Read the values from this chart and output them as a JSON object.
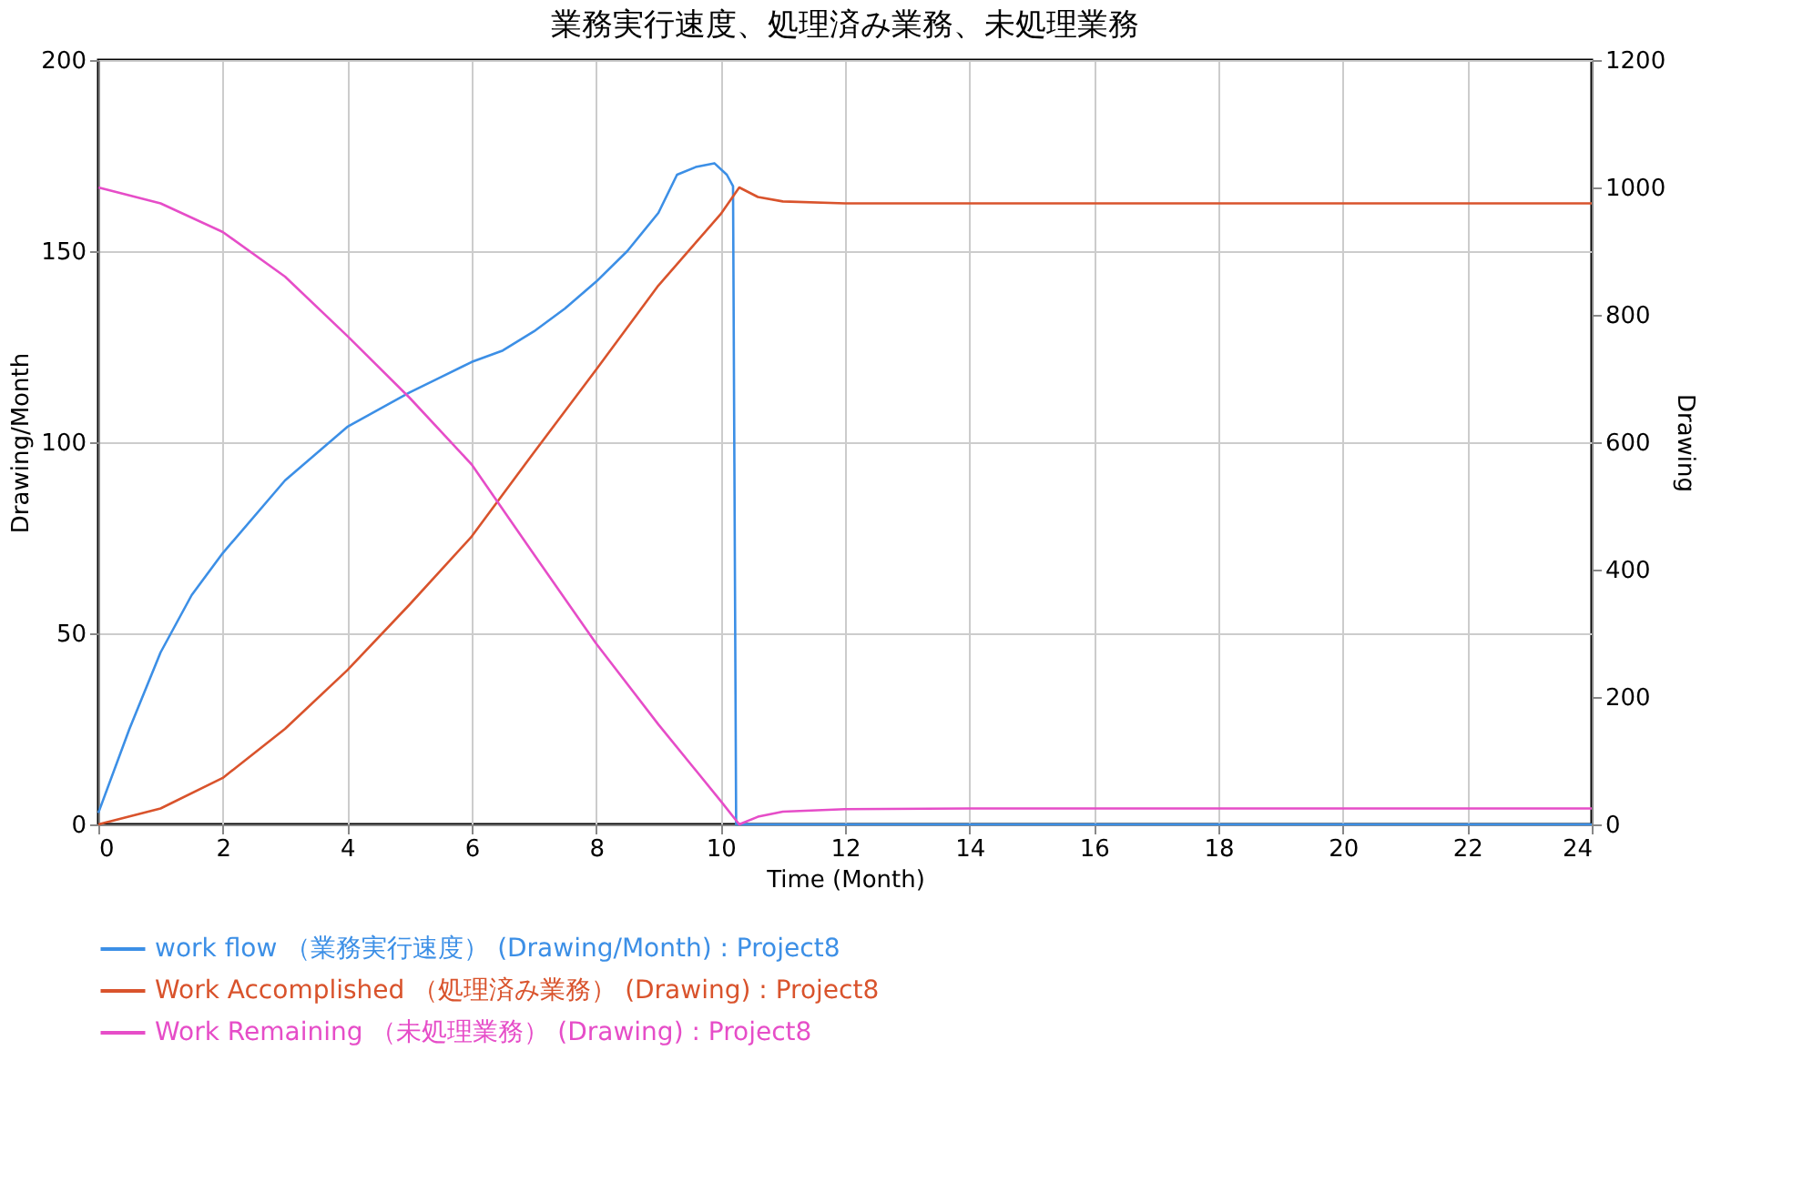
{
  "chart_data": {
    "type": "line",
    "title": "業務実行速度、処理済み業務、未処理業務",
    "xlabel": "Time (Month)",
    "ylabel": "Drawing/Month",
    "y2label": "Drawing",
    "xlim": [
      0,
      24
    ],
    "xticks": [
      0,
      2,
      4,
      6,
      8,
      10,
      12,
      14,
      16,
      18,
      20,
      22,
      24
    ],
    "ylim": [
      0,
      200
    ],
    "yticks": [
      0,
      50,
      100,
      150,
      200
    ],
    "y2lim": [
      0,
      1200
    ],
    "y2ticks": [
      0,
      200,
      400,
      600,
      800,
      1000,
      1200
    ],
    "grid": true,
    "legend": "bottom",
    "line_style": "solid",
    "series": [
      {
        "name": "work flow （業務実行速度） (Drawing/Month) : Project8",
        "color": "#3c8fe6",
        "axis": "y",
        "x": [
          0,
          0.5,
          1,
          1.5,
          2,
          3,
          4,
          5,
          5.5,
          6,
          6.5,
          7,
          7.5,
          8,
          8.5,
          9,
          9.3,
          9.6,
          9.9,
          10.1,
          10.2,
          10.25,
          10.5,
          12,
          14,
          16,
          18,
          20,
          22,
          24
        ],
        "values": [
          3,
          25,
          45,
          60,
          71,
          90,
          104,
          113,
          117,
          121,
          124,
          129,
          135,
          142,
          150,
          160,
          170,
          172,
          173,
          170,
          167,
          0,
          0,
          0,
          0,
          0,
          0,
          0,
          0,
          0
        ]
      },
      {
        "name": "Work Accomplished （処理済み業務） (Drawing) : Project8",
        "color": "#d9532c",
        "axis": "y2",
        "x": [
          0,
          1,
          2,
          3,
          4,
          5,
          6,
          7,
          8,
          9,
          10,
          10.3,
          10.6,
          11,
          12,
          14,
          16,
          18,
          20,
          22,
          24
        ],
        "values": [
          0,
          25,
          73,
          150,
          242,
          345,
          452,
          584,
          714,
          846,
          958,
          1000,
          985,
          978,
          975,
          975,
          975,
          975,
          975,
          975,
          975
        ]
      },
      {
        "name": "Work Remaining （未処理業務） (Drawing) : Project8",
        "color": "#e64dc8",
        "axis": "y2",
        "x": [
          0,
          1,
          2,
          3,
          4,
          5,
          6,
          7,
          8,
          9,
          10,
          10.3,
          10.6,
          11,
          12,
          14,
          16,
          18,
          20,
          22,
          24
        ],
        "values": [
          1000,
          975,
          930,
          860,
          767,
          670,
          565,
          424,
          284,
          157,
          37,
          0,
          12,
          20,
          24,
          25,
          25,
          25,
          25,
          25,
          25
        ]
      }
    ]
  }
}
